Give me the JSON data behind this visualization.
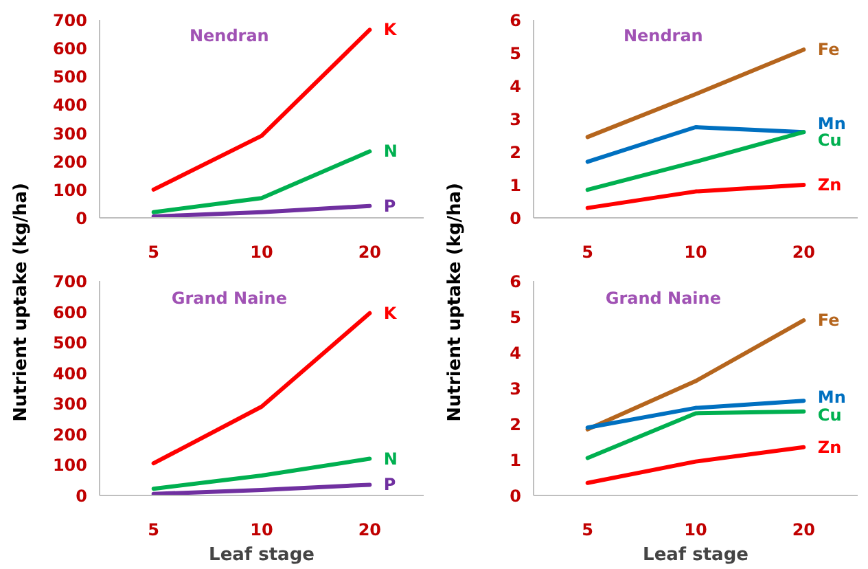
{
  "chart_data": [
    {
      "type": "line",
      "title": "Nendran",
      "ylabel": "Nutrient uptake (kg/ha)",
      "categories": [
        "5",
        "10",
        "20"
      ],
      "ylim": [
        0,
        700
      ],
      "yticks": [
        0,
        100,
        200,
        300,
        400,
        500,
        600,
        700
      ],
      "series": [
        {
          "name": "K",
          "color": "#ff0000",
          "values": [
            100,
            290,
            665
          ]
        },
        {
          "name": "N",
          "color": "#00b050",
          "values": [
            20,
            70,
            235
          ]
        },
        {
          "name": "P",
          "color": "#7030a0",
          "values": [
            5,
            20,
            42
          ]
        }
      ]
    },
    {
      "type": "line",
      "title": "Nendran",
      "ylabel": "Nutrient uptake (kg/ha)",
      "categories": [
        "5",
        "10",
        "20"
      ],
      "ylim": [
        0,
        6
      ],
      "yticks": [
        0,
        1,
        2,
        3,
        4,
        5,
        6
      ],
      "series": [
        {
          "name": "Fe",
          "color": "#b5651d",
          "values": [
            2.45,
            3.75,
            5.1
          ]
        },
        {
          "name": "Mn",
          "color": "#0070c0",
          "values": [
            1.7,
            2.75,
            2.6
          ]
        },
        {
          "name": "Cu",
          "color": "#00b050",
          "values": [
            0.85,
            1.7,
            2.6
          ]
        },
        {
          "name": "Zn",
          "color": "#ff0000",
          "values": [
            0.3,
            0.8,
            1.0
          ]
        }
      ]
    },
    {
      "type": "line",
      "title": "Grand Naine",
      "xlabel": "Leaf stage",
      "categories": [
        "5",
        "10",
        "20"
      ],
      "ylim": [
        0,
        700
      ],
      "yticks": [
        0,
        100,
        200,
        300,
        400,
        500,
        600,
        700
      ],
      "series": [
        {
          "name": "K",
          "color": "#ff0000",
          "values": [
            105,
            290,
            595
          ]
        },
        {
          "name": "N",
          "color": "#00b050",
          "values": [
            22,
            65,
            120
          ]
        },
        {
          "name": "P",
          "color": "#7030a0",
          "values": [
            5,
            18,
            35
          ]
        }
      ]
    },
    {
      "type": "line",
      "title": "Grand Naine",
      "xlabel": "Leaf stage",
      "categories": [
        "5",
        "10",
        "20"
      ],
      "ylim": [
        0,
        6
      ],
      "yticks": [
        0,
        1,
        2,
        3,
        4,
        5,
        6
      ],
      "series": [
        {
          "name": "Fe",
          "color": "#b5651d",
          "values": [
            1.85,
            3.2,
            4.9
          ]
        },
        {
          "name": "Mn",
          "color": "#0070c0",
          "values": [
            1.9,
            2.45,
            2.65
          ]
        },
        {
          "name": "Cu",
          "color": "#00b050",
          "values": [
            1.05,
            2.3,
            2.35
          ]
        },
        {
          "name": "Zn",
          "color": "#ff0000",
          "values": [
            0.35,
            0.95,
            1.35
          ]
        }
      ]
    }
  ]
}
